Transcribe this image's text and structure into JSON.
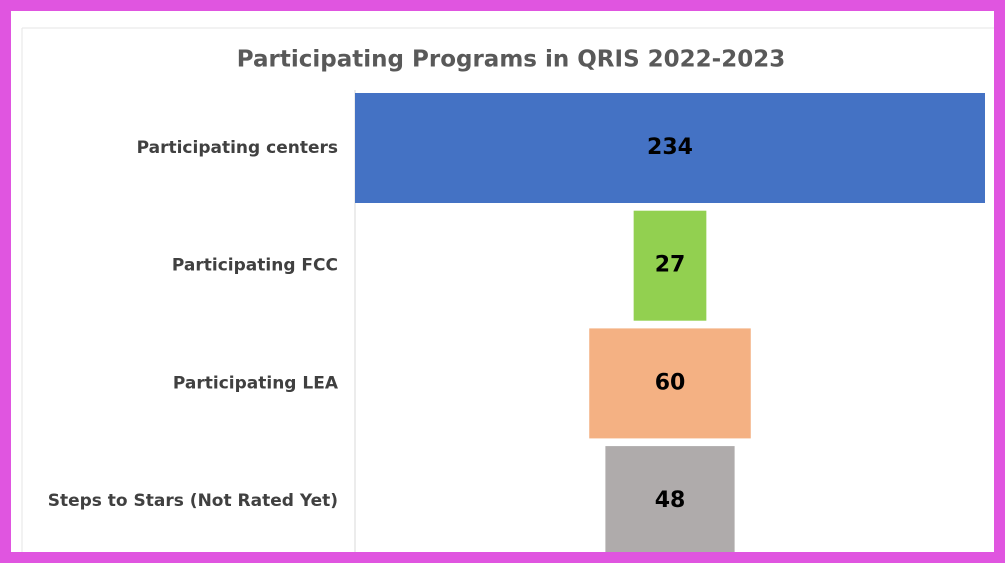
{
  "chart_data": {
    "type": "funnel",
    "title": "Participating Programs in QRIS 2022-2023",
    "categories": [
      "Participating centers",
      "Participating FCC",
      "Participating LEA",
      "Steps to Stars (Not Rated Yet)"
    ],
    "values": [
      234,
      27,
      60,
      48
    ],
    "colors": [
      "#4472c4",
      "#92d050",
      "#f4b183",
      "#afabab"
    ]
  }
}
